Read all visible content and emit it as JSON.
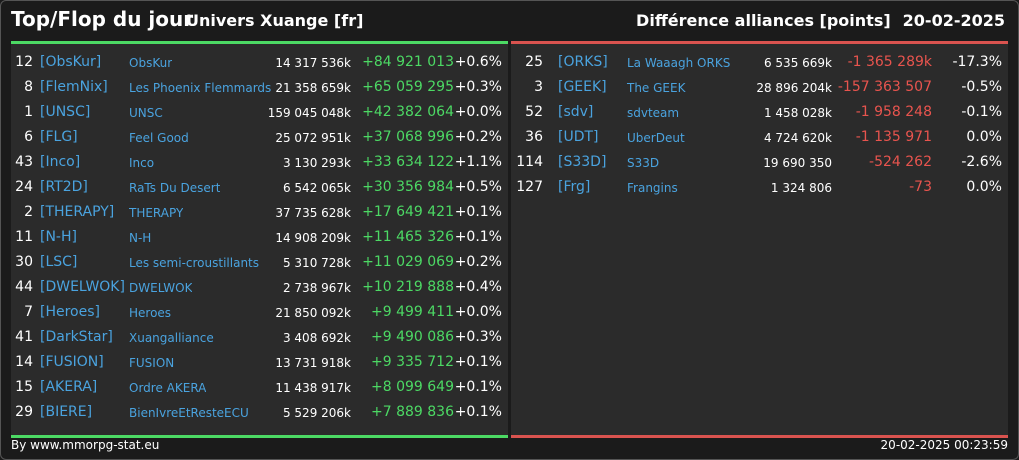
{
  "header": {
    "title": "Top/Flop du jour",
    "subtitle": "Univers Xuange [fr]",
    "right_title": "Différence alliances [points]",
    "date": "20-02-2025"
  },
  "top": [
    {
      "rank": "12",
      "tag": "[ObsKur]",
      "name": "ObsKur",
      "points": "14 317 536k",
      "diff": "+84 921 013",
      "pct": "+0.6%"
    },
    {
      "rank": "8",
      "tag": "[FlemNix]",
      "name": "Les Phoenix Flemmards",
      "points": "21 358 659k",
      "diff": "+65 059 295",
      "pct": "+0.3%"
    },
    {
      "rank": "1",
      "tag": "[UNSC]",
      "name": "UNSC",
      "points": "159 045 048k",
      "diff": "+42 382 064",
      "pct": "+0.0%"
    },
    {
      "rank": "6",
      "tag": "[FLG]",
      "name": "Feel Good",
      "points": "25 072 951k",
      "diff": "+37 068 996",
      "pct": "+0.2%"
    },
    {
      "rank": "43",
      "tag": "[Inco]",
      "name": "Inco",
      "points": "3 130 293k",
      "diff": "+33 634 122",
      "pct": "+1.1%"
    },
    {
      "rank": "24",
      "tag": "[RT2D]",
      "name": "RaTs Du Desert",
      "points": "6 542 065k",
      "diff": "+30 356 984",
      "pct": "+0.5%"
    },
    {
      "rank": "2",
      "tag": "[THERAPY]",
      "name": "THERAPY",
      "points": "37 735 628k",
      "diff": "+17 649 421",
      "pct": "+0.1%"
    },
    {
      "rank": "11",
      "tag": "[N-H]",
      "name": "N-H",
      "points": "14 908 209k",
      "diff": "+11 465 326",
      "pct": "+0.1%"
    },
    {
      "rank": "30",
      "tag": "[LSC]",
      "name": "Les semi-croustillants",
      "points": "5 310 728k",
      "diff": "+11 029 069",
      "pct": "+0.2%"
    },
    {
      "rank": "44",
      "tag": "[DWELWOK]",
      "name": "DWELWOK",
      "points": "2 738 967k",
      "diff": "+10 219 888",
      "pct": "+0.4%"
    },
    {
      "rank": "7",
      "tag": "[Heroes]",
      "name": "Heroes",
      "points": "21 850 092k",
      "diff": "+9 499 411",
      "pct": "+0.0%"
    },
    {
      "rank": "41",
      "tag": "[DarkStar]",
      "name": "Xuangalliance",
      "points": "3 408 692k",
      "diff": "+9 490 086",
      "pct": "+0.3%"
    },
    {
      "rank": "14",
      "tag": "[FUSION]",
      "name": "FUSION",
      "points": "13 731 918k",
      "diff": "+9 335 712",
      "pct": "+0.1%"
    },
    {
      "rank": "15",
      "tag": "[AKERA]",
      "name": "Ordre AKERA",
      "points": "11 438 917k",
      "diff": "+8 099 649",
      "pct": "+0.1%"
    },
    {
      "rank": "29",
      "tag": "[BIERE]",
      "name": "BienIvreEtResteECU",
      "points": "5 529 206k",
      "diff": "+7 889 836",
      "pct": "+0.1%"
    }
  ],
  "flop": [
    {
      "rank": "25",
      "tag": "[ORKS]",
      "name": "La Waaagh ORKS",
      "points": "6 535 669k",
      "diff": "-1 365 289k",
      "pct": "-17.3%"
    },
    {
      "rank": "3",
      "tag": "[GEEK]",
      "name": "The GEEK",
      "points": "28 896 204k",
      "diff": "-157 363 507",
      "pct": "-0.5%"
    },
    {
      "rank": "52",
      "tag": "[sdv]",
      "name": "sdvteam",
      "points": "1 458 028k",
      "diff": "-1 958 248",
      "pct": "-0.1%"
    },
    {
      "rank": "36",
      "tag": "[UDT]",
      "name": "UberDeut",
      "points": "4 724 620k",
      "diff": "-1 135 971",
      "pct": "0.0%"
    },
    {
      "rank": "114",
      "tag": "[S33D]",
      "name": "S33D",
      "points": "19 690 350",
      "diff": "-524 262",
      "pct": "-2.6%"
    },
    {
      "rank": "127",
      "tag": "[Frg]",
      "name": "Frangins",
      "points": "1 324 806",
      "diff": "-73",
      "pct": "0.0%"
    }
  ],
  "footer": {
    "credit": "By www.mmorpg-stat.eu",
    "timestamp": "20-02-2025 00:23:59"
  },
  "colors": {
    "positive": "#4cd964",
    "negative": "#e8544e",
    "link": "#4aa3df",
    "panel": "#2b2b2b"
  }
}
